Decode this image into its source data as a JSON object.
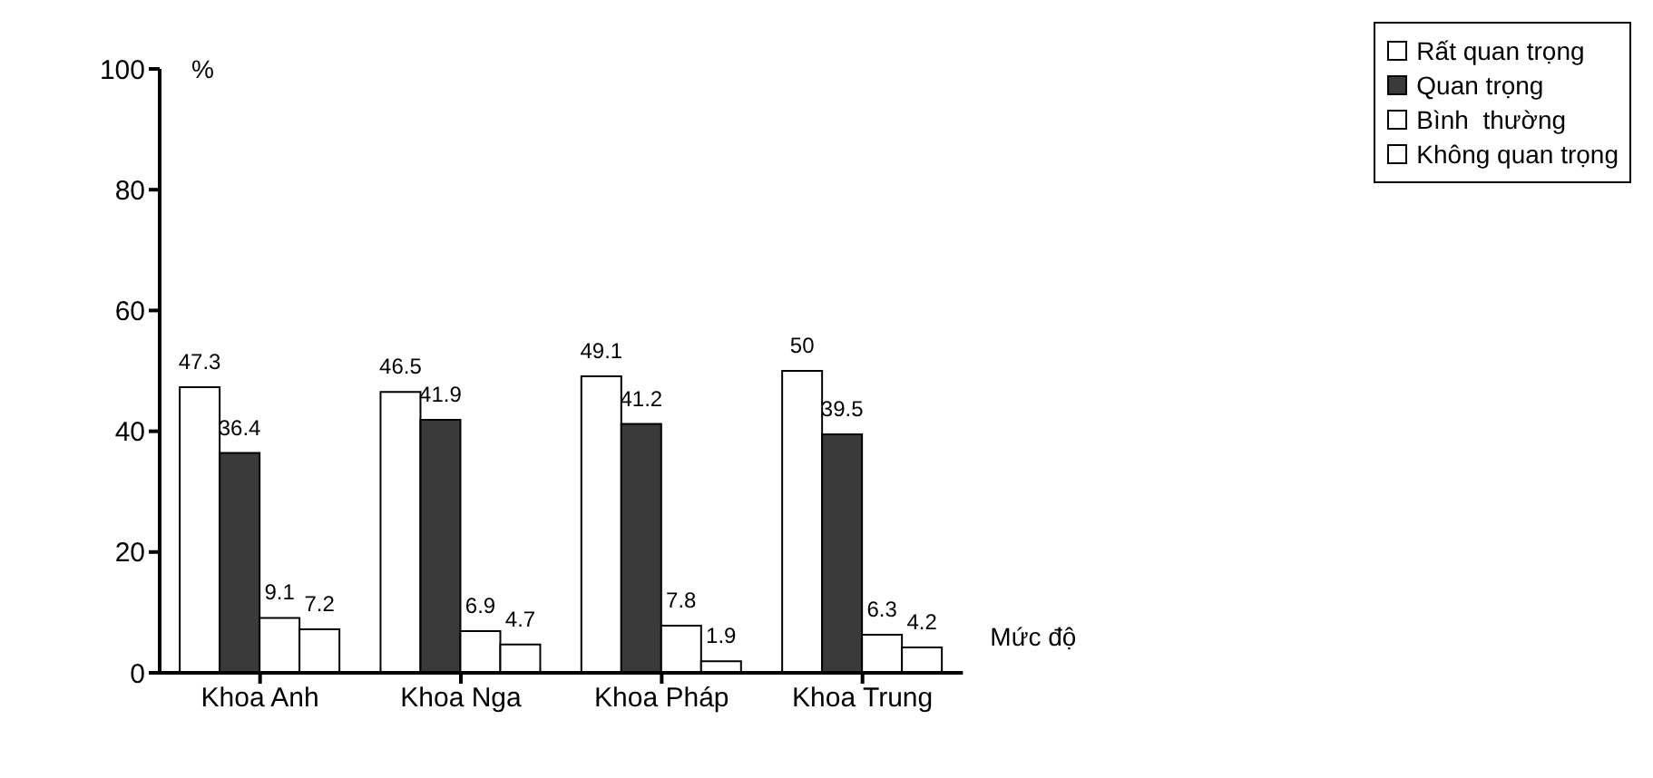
{
  "chart_data": {
    "type": "bar",
    "ylabel": "%",
    "xlabel": "Mức độ",
    "categories": [
      "Khoa Anh",
      "Khoa Nga",
      "Khoa Pháp",
      "Khoa Trung"
    ],
    "series": [
      {
        "name": "Rất quan trọng",
        "color": "#ffffff",
        "values": [
          47.3,
          46.5,
          49.1,
          50
        ]
      },
      {
        "name": "Quan trọng",
        "color": "#3a3a3a",
        "values": [
          36.4,
          41.9,
          41.2,
          39.5
        ]
      },
      {
        "name": "Bình  thường",
        "color": "#ffffff",
        "values": [
          9.1,
          6.9,
          7.8,
          6.3
        ]
      },
      {
        "name": "Không quan trọng",
        "color": "#ffffff",
        "values": [
          7.2,
          4.7,
          1.9,
          4.2
        ]
      }
    ],
    "ylim": [
      0,
      100
    ],
    "yticks": [
      0,
      20,
      40,
      60,
      80,
      100
    ],
    "grid": false,
    "legend": "top right",
    "data_labels": true
  }
}
